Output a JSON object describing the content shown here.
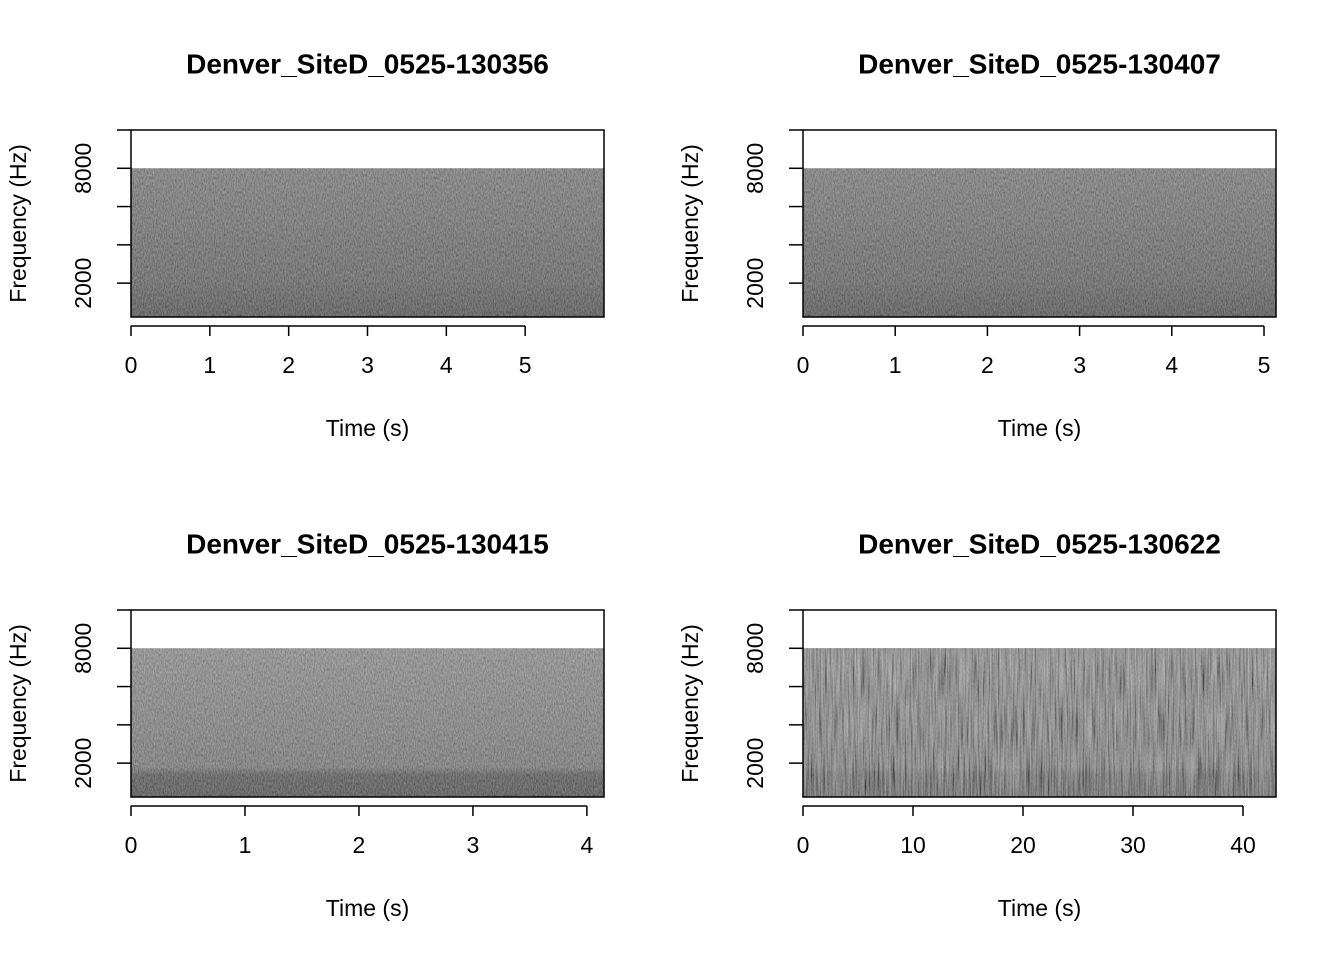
{
  "chart_data": [
    {
      "type": "spectrogram",
      "title": "Denver_SiteD_0525-130356",
      "xlabel": "Time (s)",
      "ylabel": "Frequency (Hz)",
      "duration": 6.0,
      "max_frequency": 8000,
      "xlim": [
        0,
        6.0
      ],
      "xticks": [
        0,
        1,
        2,
        3,
        4,
        5
      ],
      "ylim": [
        230,
        10000
      ],
      "yticks": [
        2000,
        {
          "value": 4000,
          "label": null
        },
        {
          "value": 6000,
          "label": null
        },
        8000,
        {
          "value": 10000,
          "label": null
        }
      ]
    },
    {
      "type": "spectrogram",
      "title": "Denver_SiteD_0525-130407",
      "xlabel": "Time (s)",
      "ylabel": "Frequency (Hz)",
      "duration": 5.13,
      "max_frequency": 8000,
      "xlim": [
        0,
        5.13
      ],
      "xticks": [
        0,
        1,
        2,
        3,
        4,
        5
      ],
      "ylim": [
        230,
        10000
      ],
      "yticks": [
        2000,
        {
          "value": 4000,
          "label": null
        },
        {
          "value": 6000,
          "label": null
        },
        8000,
        {
          "value": 10000,
          "label": null
        }
      ]
    },
    {
      "type": "spectrogram",
      "title": "Denver_SiteD_0525-130415",
      "xlabel": "Time (s)",
      "ylabel": "Frequency (Hz)",
      "duration": 4.15,
      "max_frequency": 8000,
      "xlim": [
        0,
        4.15
      ],
      "xticks": [
        0,
        1,
        2,
        3,
        4
      ],
      "ylim": [
        230,
        10000
      ],
      "yticks": [
        2000,
        {
          "value": 4000,
          "label": null
        },
        {
          "value": 6000,
          "label": null
        },
        8000,
        {
          "value": 10000,
          "label": null
        }
      ]
    },
    {
      "type": "spectrogram",
      "title": "Denver_SiteD_0525-130622",
      "xlabel": "Time (s)",
      "ylabel": "Frequency (Hz)",
      "duration": 43.0,
      "max_frequency": 8000,
      "xlim": [
        0,
        43.0
      ],
      "xticks": [
        0,
        10,
        20,
        30,
        40
      ],
      "ylim": [
        230,
        10000
      ],
      "yticks": [
        2000,
        {
          "value": 4000,
          "label": null
        },
        {
          "value": 6000,
          "label": null
        },
        8000,
        {
          "value": 10000,
          "label": null
        }
      ]
    }
  ]
}
